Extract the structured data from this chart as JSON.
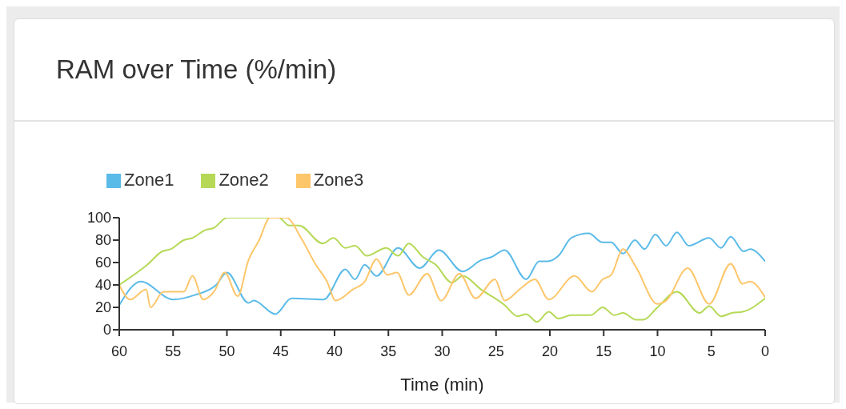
{
  "chart_data": {
    "type": "line",
    "title": "RAM over Time (%/min)",
    "xlabel": "Time (min)",
    "xlim": [
      60,
      0
    ],
    "xticks": [
      60,
      55,
      50,
      45,
      40,
      35,
      30,
      25,
      20,
      15,
      10,
      5,
      0
    ],
    "ylim": [
      0,
      100
    ],
    "yticks": [
      0,
      20,
      40,
      60,
      80,
      100
    ],
    "grid": false,
    "legend": "top left",
    "marker": "none",
    "line_style": "solid",
    "series": [
      {
        "name": "Zone1",
        "color": "#5bbbe8",
        "x": [
          60,
          58,
          55,
          53,
          51,
          50,
          48,
          47.5,
          45.5,
          44,
          41,
          39,
          38.1,
          37.2,
          36.1,
          34.1,
          32.1,
          30.3,
          28.1,
          26.4,
          25.4,
          24.2,
          22.2,
          21,
          20.2,
          19.2,
          18,
          16.4,
          15.1,
          14.3,
          13.2,
          12.1,
          11.2,
          10.2,
          9.2,
          8.2,
          7.1,
          5.2,
          4.1,
          3.2,
          2,
          1.4,
          0
        ],
        "values": [
          22,
          43,
          27,
          31,
          40,
          51,
          24,
          26,
          14,
          28,
          27,
          54,
          45,
          58,
          48,
          73,
          55,
          71,
          52,
          62,
          65,
          71,
          45,
          61,
          61,
          66,
          82,
          86,
          78,
          78,
          68,
          80,
          72,
          85,
          75,
          87,
          75,
          82,
          73,
          83,
          70,
          72,
          61
        ]
      },
      {
        "name": "Zone2",
        "color": "#b5d957",
        "x": [
          60,
          57.4,
          56,
          55.2,
          54,
          53.2,
          52,
          51.2,
          50,
          45.2,
          44.2,
          43.3,
          41.1,
          40.1,
          39,
          38.1,
          37,
          35.2,
          34.1,
          33.1,
          31.8,
          30.6,
          29.1,
          28.1,
          26.4,
          24.2,
          23,
          22.2,
          21.2,
          20.1,
          19.2,
          18,
          16.2,
          15.1,
          14,
          13.2,
          12,
          11.3,
          10,
          8.2,
          6.1,
          5.2,
          4.1,
          3.1,
          2.1,
          0
        ],
        "values": [
          40,
          58,
          70,
          72,
          80,
          82,
          89,
          91,
          100,
          100,
          93,
          93,
          77,
          82,
          73,
          75,
          66,
          73,
          66,
          77,
          65,
          58,
          42,
          48,
          36,
          22,
          12,
          14,
          7,
          16,
          10,
          13,
          13,
          20,
          13,
          15,
          9,
          9,
          20,
          34,
          15,
          21,
          12,
          15,
          16,
          28
        ]
      },
      {
        "name": "Zone3",
        "color": "#fdc66a",
        "x": [
          60,
          59,
          57.5,
          57.1,
          55.9,
          54,
          53.2,
          52.2,
          51.2,
          50.2,
          49,
          48,
          47,
          46,
          44.5,
          43,
          41.8,
          40.7,
          39.9,
          38.3,
          37.2,
          36.1,
          35.1,
          34.2,
          33.1,
          31.4,
          30.1,
          28.4,
          26.9,
          25.1,
          24.2,
          22.7,
          21.4,
          20.1,
          17.7,
          16.1,
          15.1,
          14.3,
          13.2,
          12,
          10,
          9.2,
          7.2,
          5.2,
          3.2,
          2.1,
          1.4,
          0
        ],
        "values": [
          40,
          27,
          36,
          20,
          34,
          34,
          48,
          27,
          34,
          51,
          30,
          62,
          80,
          100,
          100,
          80,
          59,
          43,
          26,
          36,
          43,
          63,
          49,
          51,
          31,
          50,
          26,
          50,
          28,
          45,
          26,
          37,
          45,
          27,
          48,
          34,
          45,
          49,
          72,
          56,
          23,
          26,
          55,
          23,
          59,
          41,
          43,
          29
        ]
      }
    ]
  }
}
